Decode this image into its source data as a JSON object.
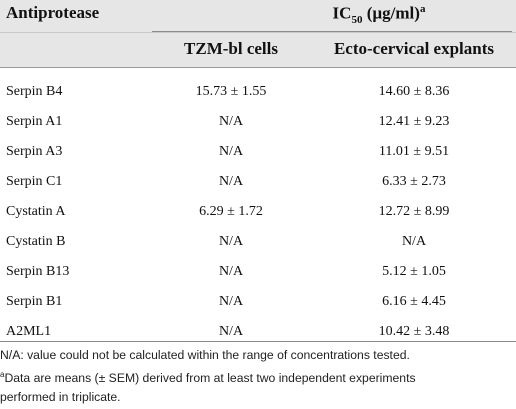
{
  "table": {
    "col_antiprotease": "Antiprotease",
    "ic50_prefix": "IC",
    "ic50_sub": "50",
    "ic50_unit": " (µg/ml)",
    "ic50_sup": "a",
    "col_tzm": "TZM-bl cells",
    "col_ecto": "Ecto-cervical explants",
    "rows": [
      {
        "name": "Serpin B4",
        "tzm": "15.73 ± 1.55",
        "ecto": "14.60 ± 8.36"
      },
      {
        "name": "Serpin A1",
        "tzm": "N/A",
        "ecto": "12.41 ± 9.23"
      },
      {
        "name": "Serpin A3",
        "tzm": "N/A",
        "ecto": "11.01 ± 9.51"
      },
      {
        "name": "Serpin C1",
        "tzm": "N/A",
        "ecto": "6.33 ± 2.73"
      },
      {
        "name": "Cystatin A",
        "tzm": "6.29 ± 1.72",
        "ecto": "12.72 ± 8.99"
      },
      {
        "name": "Cystatin B",
        "tzm": "N/A",
        "ecto": "N/A"
      },
      {
        "name": "Serpin B13",
        "tzm": "N/A",
        "ecto": "5.12 ± 1.05"
      },
      {
        "name": "Serpin B1",
        "tzm": "N/A",
        "ecto": "6.16 ± 4.45"
      },
      {
        "name": "A2ML1",
        "tzm": "N/A",
        "ecto": "10.42 ± 3.48"
      }
    ]
  },
  "footnotes": {
    "line1": "N/A: value could not be calculated within the range of concentrations tested.",
    "line2_sup": "a",
    "line2": "Data are means (± SEM) derived from at least two independent experiments",
    "line3": "performed in triplicate."
  }
}
